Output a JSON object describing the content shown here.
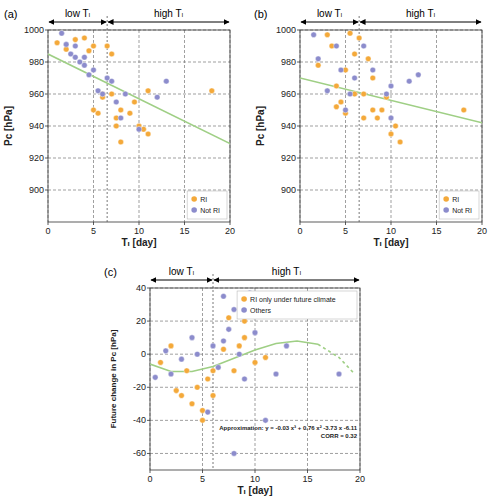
{
  "chart_data": [
    {
      "type": "scatter",
      "title": "(a)",
      "x_label": "Tₗ [day]",
      "y_label": "Pc [hPa]",
      "xlim": [
        0,
        20
      ],
      "ylim": [
        880,
        1000
      ],
      "xticks": [
        0,
        5,
        10,
        15,
        20
      ],
      "yticks": [
        900,
        920,
        940,
        960,
        980,
        1000
      ],
      "grid": true,
      "legend": "lower right",
      "regions": [
        {
          "label": "low Tₗ",
          "from": 0,
          "to": 6.5
        },
        {
          "label": "high Tₗ",
          "from": 6.5,
          "to": 20
        }
      ],
      "series": [
        {
          "name": "RI",
          "type": "scatter",
          "marker": "circle",
          "color": "#f4a93a",
          "x": [
            1,
            2,
            3,
            4,
            4.5,
            5,
            5.5,
            5,
            6,
            6.5,
            7,
            7,
            7.5,
            8,
            8,
            9,
            9.5,
            10,
            10.5,
            11,
            11,
            18,
            6,
            7.5
          ],
          "values": [
            992,
            988,
            994,
            995,
            987,
            990,
            948,
            950,
            960,
            990,
            985,
            960,
            945,
            930,
            950,
            948,
            955,
            940,
            938,
            935,
            962,
            962,
            958,
            940
          ]
        },
        {
          "name": "Not RI",
          "type": "scatter",
          "marker": "circle",
          "color": "#8c8ccc",
          "x": [
            1.5,
            2,
            2.5,
            3,
            3.5,
            4,
            4.5,
            5,
            5.5,
            6,
            6.5,
            7,
            7.5,
            8,
            8.5,
            10,
            12,
            13,
            3,
            4
          ],
          "values": [
            998,
            991,
            985,
            983,
            980,
            978,
            972,
            975,
            962,
            960,
            970,
            968,
            955,
            945,
            960,
            938,
            958,
            968,
            990,
            983
          ]
        },
        {
          "type": "line",
          "line_style": "solid",
          "color": "#9fcf85",
          "x": [
            0,
            20
          ],
          "values": [
            985,
            929
          ]
        }
      ]
    },
    {
      "type": "scatter",
      "title": "(b)",
      "x_label": "Tₗ [day]",
      "y_label": "Pc [hPa]",
      "xlim": [
        0,
        20
      ],
      "ylim": [
        880,
        1000
      ],
      "xticks": [
        0,
        5,
        10,
        15,
        20
      ],
      "yticks": [
        900,
        920,
        940,
        960,
        980,
        1000
      ],
      "grid": true,
      "legend": "lower right",
      "regions": [
        {
          "label": "low Tₗ",
          "from": 0,
          "to": 6.5
        },
        {
          "label": "high Tₗ",
          "from": 6.5,
          "to": 20
        }
      ],
      "series": [
        {
          "name": "RI",
          "type": "scatter",
          "marker": "circle",
          "color": "#f4a93a",
          "x": [
            2,
            3,
            3.5,
            4,
            4.5,
            5,
            5.5,
            6,
            6.5,
            7,
            7,
            7.5,
            8,
            8,
            8.5,
            9,
            9.5,
            10,
            10.5,
            11,
            6,
            4,
            18,
            5
          ],
          "values": [
            978,
            997,
            990,
            965,
            955,
            948,
            998,
            985,
            995,
            960,
            945,
            982,
            970,
            950,
            945,
            950,
            958,
            935,
            940,
            930,
            960,
            952,
            950,
            975
          ]
        },
        {
          "name": "Not RI",
          "type": "scatter",
          "marker": "circle",
          "color": "#8c8ccc",
          "x": [
            1.5,
            2,
            3,
            4,
            4.5,
            5.5,
            6,
            7,
            8,
            9.5,
            10,
            12,
            13,
            10,
            5
          ],
          "values": [
            997,
            982,
            962,
            990,
            975,
            960,
            970,
            990,
            975,
            960,
            945,
            968,
            972,
            965,
            950
          ]
        },
        {
          "type": "line",
          "line_style": "solid",
          "color": "#9fcf85",
          "x": [
            0,
            20
          ],
          "values": [
            970,
            942
          ]
        }
      ]
    },
    {
      "type": "scatter",
      "title": "(c)",
      "x_label": "Tₗ [day]",
      "y_label": "Future change in Pc [hPa]",
      "xlim": [
        0,
        20
      ],
      "ylim": [
        -70,
        40
      ],
      "xticks": [
        0,
        5,
        10,
        15,
        20
      ],
      "yticks": [
        -60,
        -40,
        -20,
        0,
        20,
        40
      ],
      "grid": true,
      "legend": "upper right",
      "regions": [
        {
          "label": "low Tₗ",
          "from": 0,
          "to": 6
        },
        {
          "label": "high Tₗ",
          "from": 6,
          "to": 20
        }
      ],
      "annotations": [
        "Approximation: y = -0.03 x³ + 0.76 x² -3.73 x -6.11",
        "CORR = 0.32"
      ],
      "series": [
        {
          "name": "RI only under future climate",
          "type": "scatter",
          "marker": "circle",
          "color": "#f4a93a",
          "x": [
            1,
            2,
            3,
            3.5,
            4,
            4.5,
            5,
            5,
            5.5,
            6,
            7,
            7.5,
            8,
            8.5,
            9,
            10,
            11,
            6,
            2.5,
            9
          ],
          "values": [
            -5,
            5,
            -25,
            -10,
            -30,
            -20,
            -40,
            -34,
            -15,
            -10,
            3,
            22,
            -10,
            5,
            20,
            -5,
            -2,
            -25,
            -22,
            10
          ]
        },
        {
          "name": "Others",
          "type": "scatter",
          "marker": "circle",
          "color": "#8c8ccc",
          "x": [
            0.5,
            1.5,
            2,
            3,
            4,
            4.5,
            5.5,
            6,
            6.5,
            7,
            7.5,
            8,
            8.5,
            9,
            9.5,
            10,
            11,
            12,
            13,
            18,
            8,
            7
          ],
          "values": [
            -14,
            2,
            -12,
            -3,
            10,
            0,
            -35,
            5,
            -8,
            8,
            15,
            27,
            0,
            -15,
            37,
            13,
            -40,
            -12,
            5,
            -12,
            -60,
            35
          ]
        },
        {
          "type": "line",
          "line_style": "solid",
          "color": "#9fcf85",
          "x": [
            0,
            2,
            4,
            6,
            8,
            10,
            12,
            14,
            16
          ],
          "values": [
            -6,
            -10.5,
            -10.5,
            -7.5,
            -2.5,
            2.5,
            6.5,
            8,
            6
          ]
        },
        {
          "type": "line",
          "line_style": "dashed",
          "color": "#9fcf85",
          "x": [
            16,
            18,
            19.5
          ],
          "values": [
            6,
            -2,
            -12
          ]
        }
      ]
    }
  ]
}
